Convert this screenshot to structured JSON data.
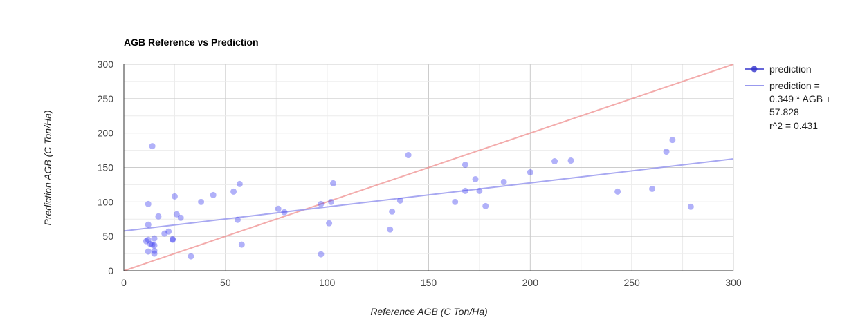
{
  "chart_data": {
    "type": "scatter",
    "title": "AGB Reference vs Prediction",
    "xlabel": "Reference AGB (C Ton/Ha)",
    "ylabel": "Prediction AGB (C Ton/Ha)",
    "xlim": [
      0,
      300
    ],
    "ylim": [
      0,
      300
    ],
    "x_ticks": [
      "0",
      "50",
      "100",
      "150",
      "200",
      "250",
      "300"
    ],
    "y_ticks": [
      "0",
      "50",
      "100",
      "150",
      "200",
      "250",
      "300"
    ],
    "grid": true,
    "legend_position": "right",
    "colors": {
      "points": "#3333ee",
      "trendline": "#9999ee",
      "identity": "#ee8888",
      "legend_marker": "#3333cc"
    },
    "series": [
      {
        "name": "prediction",
        "points": [
          [
            14,
            181
          ],
          [
            11,
            43
          ],
          [
            12,
            97
          ],
          [
            12,
            67
          ],
          [
            12,
            45
          ],
          [
            12,
            28
          ],
          [
            13,
            39
          ],
          [
            14,
            38
          ],
          [
            15,
            47
          ],
          [
            15,
            37
          ],
          [
            15,
            29
          ],
          [
            15,
            25
          ],
          [
            17,
            79
          ],
          [
            20,
            54
          ],
          [
            22,
            57
          ],
          [
            24,
            46
          ],
          [
            24,
            45
          ],
          [
            25,
            108
          ],
          [
            26,
            82
          ],
          [
            28,
            77
          ],
          [
            33,
            21
          ],
          [
            38,
            100
          ],
          [
            44,
            110
          ],
          [
            54,
            115
          ],
          [
            56,
            74
          ],
          [
            57,
            126
          ],
          [
            58,
            38
          ],
          [
            76,
            90
          ],
          [
            79,
            85
          ],
          [
            97,
            24
          ],
          [
            97,
            97
          ],
          [
            101,
            69
          ],
          [
            102,
            100
          ],
          [
            103,
            127
          ],
          [
            131,
            60
          ],
          [
            132,
            86
          ],
          [
            136,
            102
          ],
          [
            140,
            168
          ],
          [
            163,
            100
          ],
          [
            168,
            116
          ],
          [
            168,
            154
          ],
          [
            173,
            133
          ],
          [
            175,
            116
          ],
          [
            178,
            94
          ],
          [
            187,
            129
          ],
          [
            200,
            143
          ],
          [
            212,
            159
          ],
          [
            220,
            160
          ],
          [
            243,
            115
          ],
          [
            260,
            119
          ],
          [
            267,
            173
          ],
          [
            270,
            190
          ],
          [
            279,
            93
          ]
        ]
      }
    ],
    "trendline": {
      "label_lines": [
        "prediction =",
        "0.349 * AGB +",
        "57.828",
        "r^2 = 0.431"
      ],
      "slope": 0.349,
      "intercept": 57.828,
      "r2": 0.431
    },
    "identity_line": {
      "from": [
        0,
        0
      ],
      "to": [
        300,
        300
      ]
    }
  }
}
